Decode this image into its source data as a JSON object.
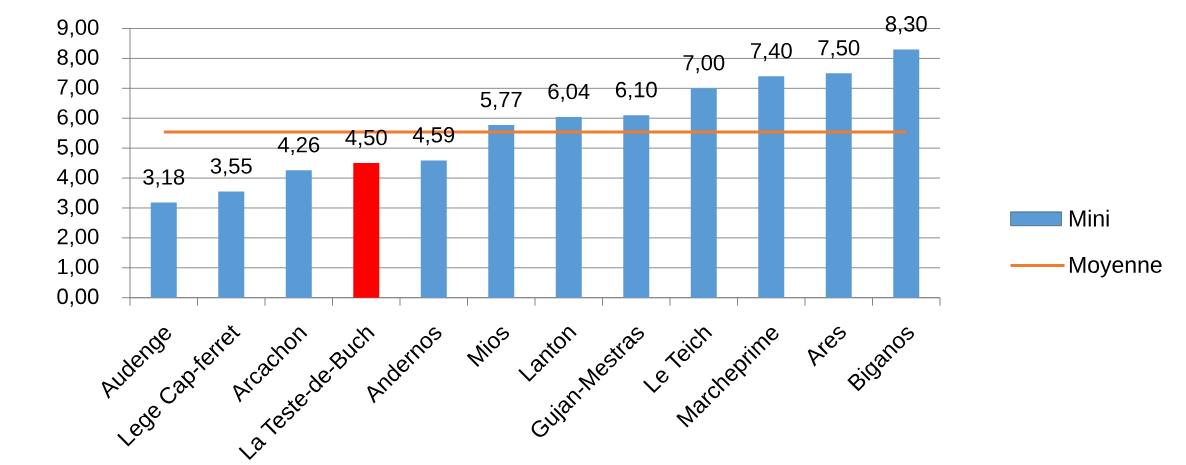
{
  "chart_data": {
    "type": "bar",
    "categories": [
      "Audenge",
      "Lege Cap-ferret",
      "Arcachon",
      "La Teste-de-Buch",
      "Andernos",
      "Mios",
      "Lanton",
      "Gujan-Mestras",
      "Le Teich",
      "Marcheprime",
      "Ares",
      "Biganos"
    ],
    "series": [
      {
        "name": "Mini",
        "color": "#5b9bd5",
        "colors": [
          "#5b9bd5",
          "#5b9bd5",
          "#5b9bd5",
          "#ff0000",
          "#5b9bd5",
          "#5b9bd5",
          "#5b9bd5",
          "#5b9bd5",
          "#5b9bd5",
          "#5b9bd5",
          "#5b9bd5",
          "#5b9bd5"
        ],
        "values": [
          3.18,
          3.55,
          4.26,
          4.5,
          4.59,
          5.77,
          6.04,
          6.1,
          7.0,
          7.4,
          7.5,
          8.3
        ],
        "value_labels": [
          "3,18",
          "3,55",
          "4,26",
          "4,50",
          "4,59",
          "5,77",
          "6,04",
          "6,10",
          "7,00",
          "7,40",
          "7,50",
          "8,30"
        ]
      },
      {
        "name": "Moyenne",
        "type": "line",
        "color": "#ed7d31",
        "values": [
          5.54,
          5.54,
          5.54,
          5.54,
          5.54,
          5.54,
          5.54,
          5.54,
          5.54,
          5.54,
          5.54,
          5.54
        ]
      }
    ],
    "ylim": [
      0,
      9
    ],
    "yticks": [
      {
        "value": 0,
        "label": "0,00"
      },
      {
        "value": 1,
        "label": "1,00"
      },
      {
        "value": 2,
        "label": "2,00"
      },
      {
        "value": 3,
        "label": "3,00"
      },
      {
        "value": 4,
        "label": "4,00"
      },
      {
        "value": 5,
        "label": "5,00"
      },
      {
        "value": 6,
        "label": "6,00"
      },
      {
        "value": 7,
        "label": "7,00"
      },
      {
        "value": 8,
        "label": "8,00"
      },
      {
        "value": 9,
        "label": "9,00"
      }
    ],
    "grid": "y",
    "legend": "right"
  }
}
